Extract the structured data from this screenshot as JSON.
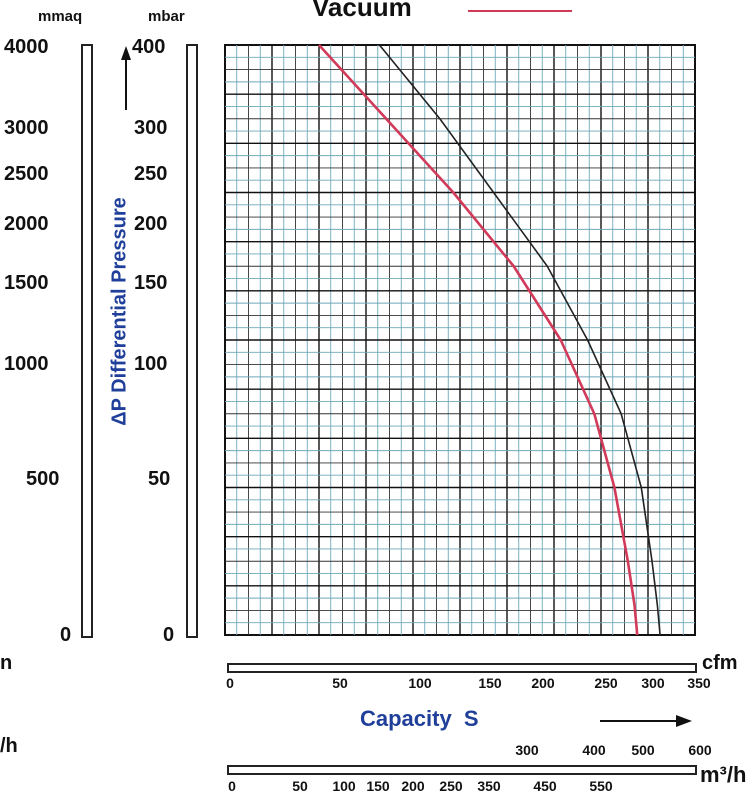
{
  "chart_data": {
    "type": "line",
    "title": "Vacuum",
    "left_axis_units": [
      "mmaq",
      "mbar"
    ],
    "ylabel": "ΔP Differential Pressure",
    "xlabel": "Capacity  S",
    "y_ticks_mmaq": [
      "4000",
      "3000",
      "2500",
      "2000",
      "1500",
      "1000",
      "500",
      "0"
    ],
    "y_ticks_mbar": [
      "400",
      "300",
      "250",
      "200",
      "150",
      "100",
      "50",
      "0"
    ],
    "x_ticks_cfm": [
      "0",
      "50",
      "100",
      "150",
      "200",
      "250",
      "300",
      "350"
    ],
    "x_units_cfm": "cfm",
    "x_ticks_m3h_upper": [
      "300",
      "400",
      "500",
      "600"
    ],
    "x_ticks_m3h_lower": [
      "0",
      "50",
      "100",
      "150",
      "200",
      "250",
      "350",
      "450",
      "550"
    ],
    "x_units_m3h": "m³/h",
    "ylim_mbar": [
      0,
      400
    ],
    "xlim_cfm": [
      0,
      350
    ],
    "series": [
      {
        "name": "Vacuum",
        "color": "#d23a5a",
        "x_cfm": [
          70,
          120,
          170,
          215,
          250,
          275,
          290,
          300,
          305,
          307
        ],
        "y_mbar": [
          400,
          350,
          300,
          250,
          200,
          150,
          100,
          50,
          20,
          0
        ]
      },
      {
        "color": "#222222",
        "x_cfm": [
          115,
          160,
          200,
          240,
          270,
          295,
          310,
          318,
          322,
          324
        ],
        "y_mbar": [
          400,
          350,
          300,
          250,
          200,
          150,
          100,
          50,
          20,
          0
        ]
      }
    ],
    "edge_letters": {
      "top": "n",
      "bottom": "/h"
    }
  }
}
